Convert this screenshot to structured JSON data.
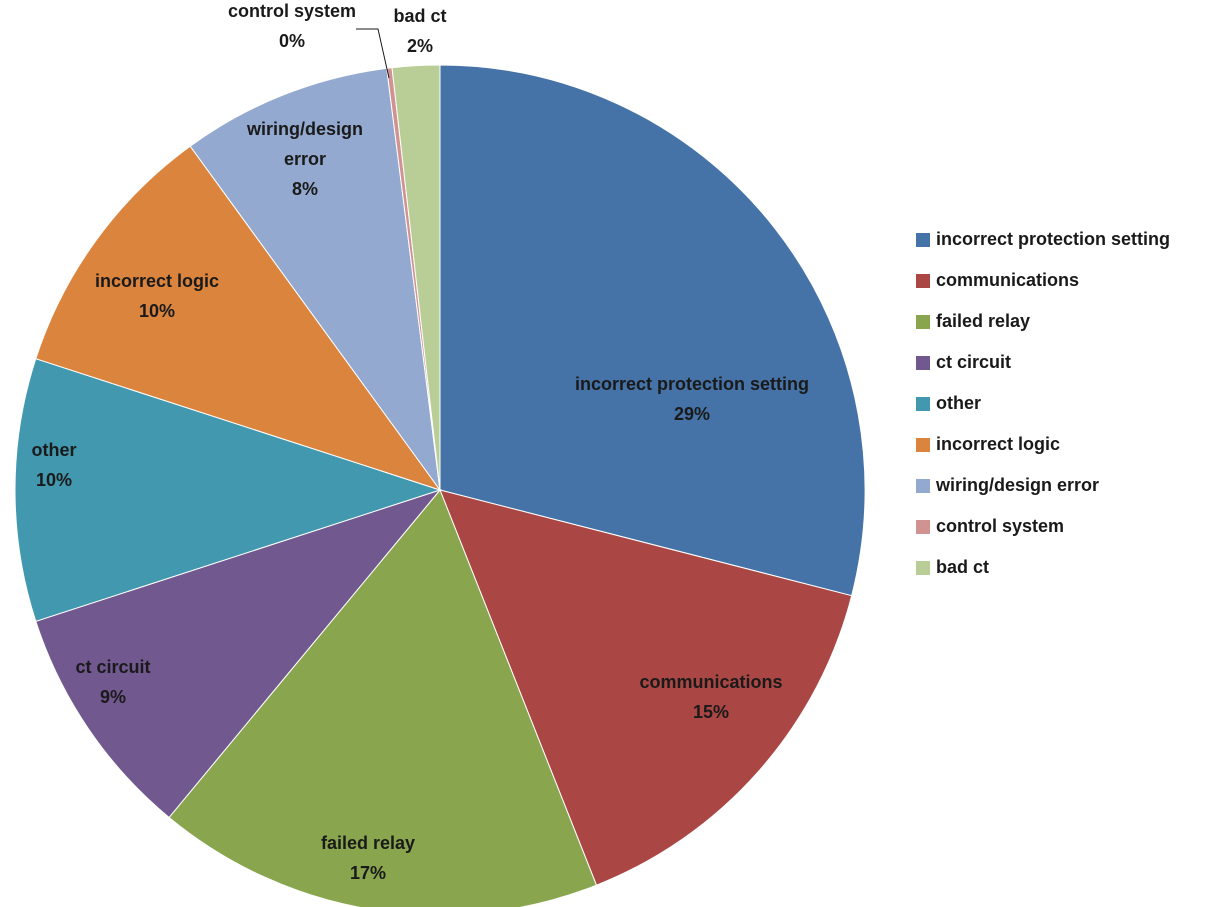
{
  "chart_data": {
    "type": "pie",
    "title": "",
    "legend_position": "right",
    "start_angle_deg": 0,
    "direction": "clockwise",
    "slices": [
      {
        "key": "incorrect_protection_setting",
        "label": "incorrect protection setting",
        "value": 29,
        "value_label": "29%",
        "color": "#4572A7"
      },
      {
        "key": "communications",
        "label": "communications",
        "value": 15,
        "value_label": "15%",
        "color": "#AA4643"
      },
      {
        "key": "failed_relay",
        "label": "failed relay",
        "value": 17,
        "value_label": "17%",
        "color": "#89A54E"
      },
      {
        "key": "ct_circuit",
        "label": "ct circuit",
        "value": 9,
        "value_label": "9%",
        "color": "#71588F"
      },
      {
        "key": "other",
        "label": "other",
        "value": 10,
        "value_label": "10%",
        "color": "#4198AF"
      },
      {
        "key": "incorrect_logic",
        "label": "incorrect logic",
        "value": 10,
        "value_label": "10%",
        "color": "#DB843D"
      },
      {
        "key": "wiring_design_error",
        "label": "wiring/design error",
        "value": 8,
        "value_label": "8%",
        "color": "#93A9CF"
      },
      {
        "key": "control_system",
        "label": "control system",
        "value": 0.2,
        "value_label": "0%",
        "color": "#D19392"
      },
      {
        "key": "bad_ct",
        "label": "bad ct",
        "value": 1.8,
        "value_label": "2%",
        "color": "#B9CD96"
      }
    ]
  }
}
